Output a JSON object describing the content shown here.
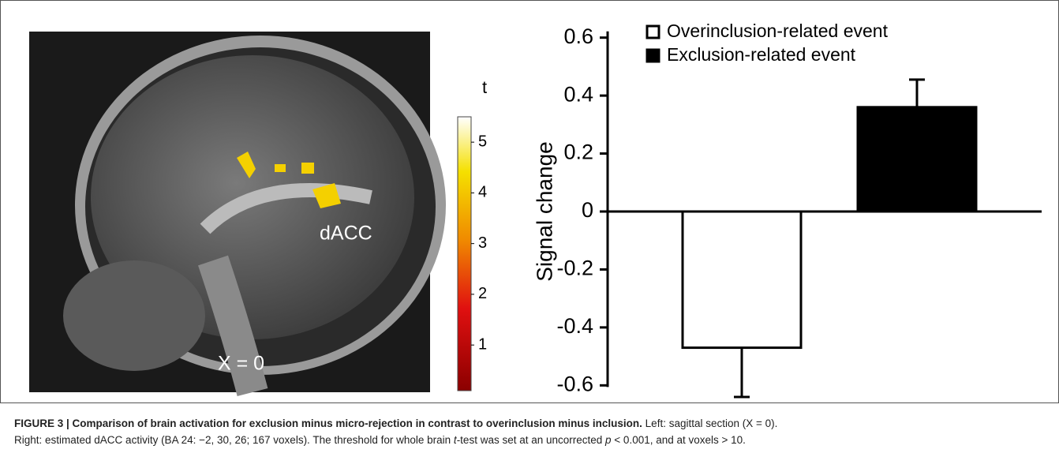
{
  "chart_data": {
    "type": "bar",
    "ylabel": "Signal change",
    "series": [
      {
        "name": "Overinclusion-related event",
        "color": "#ffffff",
        "values": [
          -0.47
        ],
        "errors": [
          0.17
        ]
      },
      {
        "name": "Exclusion-related event",
        "color": "#000000",
        "values": [
          0.36
        ],
        "errors": [
          0.095
        ]
      }
    ],
    "ylim": [
      -0.64,
      0.64
    ],
    "yticks": [
      -0.6,
      -0.4,
      -0.2,
      0,
      0.2,
      0.4,
      0.6
    ]
  },
  "image": {
    "labels": [
      "dACC",
      "X = 0"
    ],
    "colorbar": {
      "title": "t",
      "clim": [
        0.1,
        5.5
      ],
      "ticks": [
        1,
        2,
        3,
        4,
        5
      ]
    }
  },
  "caption": {
    "title": "FIGURE 3 | Comparison of brain activation for exclusion minus micro-rejection in contrast to overinclusion minus inclusion.",
    "first": "Left: sagittal section (X = 0).",
    "parts": [
      "Right: estimated dACC activity (BA 24: −2, 30, 26; 167 voxels). The threshold for whole brain ",
      "t",
      "-test was set at an uncorrected ",
      "p",
      " < 0.001, and at voxels > 10."
    ]
  }
}
